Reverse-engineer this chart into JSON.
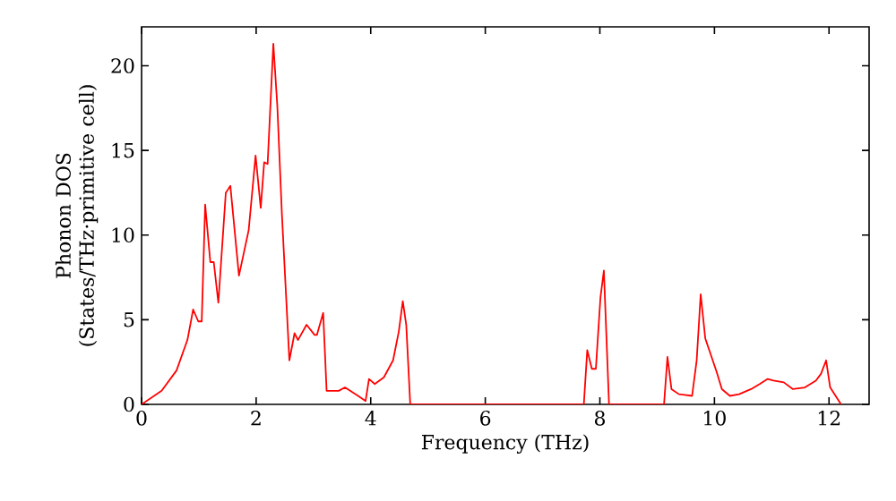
{
  "chart_data": {
    "type": "line",
    "xlabel": "Frequency (THz)",
    "ylabel": "Phonon DOS (States/THz·primitive cell)",
    "xlim": [
      0,
      12.7
    ],
    "ylim": [
      0,
      22.3
    ],
    "xticks": [
      0,
      2,
      4,
      6,
      8,
      10,
      12
    ],
    "yticks": [
      0,
      5,
      10,
      15,
      20
    ],
    "grid": false,
    "marker": "none",
    "line_style": "solid",
    "series": [
      {
        "color": "#ff0000",
        "x": [
          0,
          0.35,
          0.61,
          0.8,
          0.9,
          0.99,
          1.05,
          1.11,
          1.2,
          1.26,
          1.34,
          1.47,
          1.55,
          1.7,
          1.87,
          1.99,
          2.08,
          2.14,
          2.2,
          2.3,
          2.37,
          2.45,
          2.58,
          2.67,
          2.73,
          2.88,
          3.02,
          3.06,
          3.17,
          3.23,
          3.44,
          3.55,
          3.78,
          3.91,
          3.97,
          4.07,
          4.23,
          4.39,
          4.49,
          4.56,
          4.62,
          4.69,
          7.72,
          7.78,
          7.86,
          7.93,
          8.01,
          8.07,
          8.16,
          9.12,
          9.18,
          9.25,
          9.38,
          9.61,
          9.69,
          9.76,
          9.84,
          9.95,
          10.04,
          10.13,
          10.27,
          10.43,
          10.64,
          10.79,
          10.93,
          11.03,
          11.21,
          11.37,
          11.58,
          11.77,
          11.86,
          11.95,
          12.02,
          12.21
        ],
        "values": [
          0,
          0.8,
          2.0,
          3.8,
          5.6,
          4.9,
          4.9,
          11.8,
          8.4,
          8.4,
          6.0,
          12.5,
          12.9,
          7.6,
          10.3,
          14.7,
          11.6,
          14.3,
          14.2,
          21.3,
          17.6,
          11.2,
          2.6,
          4.2,
          3.8,
          4.7,
          4.1,
          4.1,
          5.4,
          0.8,
          0.8,
          1.0,
          0.5,
          0.2,
          1.5,
          1.2,
          1.6,
          2.6,
          4.3,
          6.1,
          4.7,
          0,
          0,
          3.2,
          2.1,
          2.1,
          6.3,
          7.9,
          0,
          0,
          2.8,
          0.9,
          0.6,
          0.5,
          2.6,
          6.5,
          3.9,
          2.8,
          1.9,
          0.9,
          0.5,
          0.6,
          0.9,
          1.2,
          1.5,
          1.4,
          1.3,
          0.9,
          1.0,
          1.4,
          1.8,
          2.6,
          1.0,
          0
        ]
      }
    ]
  }
}
